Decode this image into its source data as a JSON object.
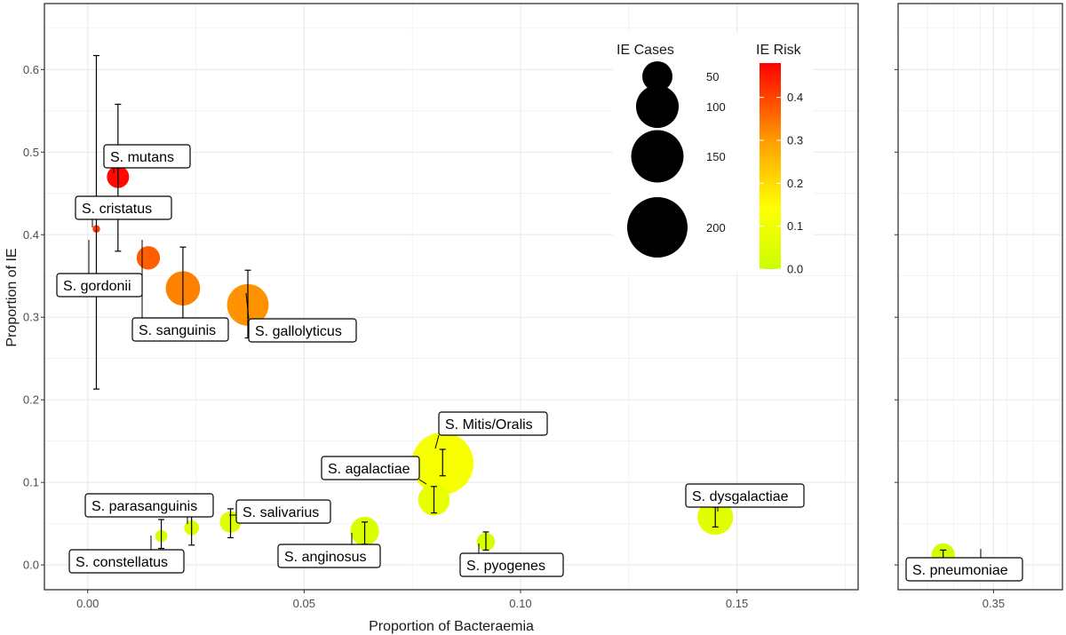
{
  "chart_data": {
    "type": "scatter",
    "xlabel": "Proportion of Bacteraemia",
    "ylabel": "Proportion of IE",
    "panels": [
      {
        "name": "main",
        "xlim": [
          -0.01,
          0.178
        ],
        "x_ticks": [
          0.0,
          0.05,
          0.1,
          0.15
        ],
        "x_tick_labels": [
          "0.00",
          "0.05",
          "0.10",
          "0.15"
        ]
      },
      {
        "name": "right",
        "xlim": [
          0.332,
          0.363
        ],
        "x_ticks": [
          0.35
        ],
        "x_tick_labels": [
          "0.35"
        ]
      }
    ],
    "ylim": [
      -0.03,
      0.68
    ],
    "y_ticks": [
      0.0,
      0.1,
      0.2,
      0.3,
      0.4,
      0.5,
      0.6
    ],
    "y_tick_labels": [
      "0.0",
      "0.1",
      "0.2",
      "0.3",
      "0.4",
      "0.5",
      "0.6"
    ],
    "points": [
      {
        "label": "S. mutans",
        "x": 0.007,
        "y": 0.47,
        "ie_cases": 27,
        "ie_risk": 0.47,
        "ci": [
          0.38,
          0.558
        ],
        "panel": 0
      },
      {
        "label": "S. cristatus",
        "x": 0.002,
        "y": 0.407,
        "ie_cases": 3,
        "ie_risk": 0.41,
        "ci": null,
        "panel": 0
      },
      {
        "label": "S. gordonii",
        "x": 0.002,
        "y": 0.407,
        "ie_cases": 3,
        "ie_risk": 0.41,
        "ci": [
          0.213,
          0.617
        ],
        "panel": 0
      },
      {
        "label": "S. sanguinis",
        "x": 0.014,
        "y": 0.372,
        "ie_cases": 30,
        "ie_risk": 0.37,
        "ci": null,
        "panel": 0
      },
      {
        "label": "S. sanguinis",
        "x": 0.022,
        "y": 0.335,
        "ie_cases": 65,
        "ie_risk": 0.33,
        "ci": [
          0.285,
          0.385
        ],
        "panel": 0
      },
      {
        "label": "S. gallolyticus",
        "x": 0.037,
        "y": 0.315,
        "ie_cases": 95,
        "ie_risk": 0.31,
        "ci": [
          0.275,
          0.357
        ],
        "panel": 0
      },
      {
        "label": "S. Mitis/Oralis",
        "x": 0.082,
        "y": 0.123,
        "ie_cases": 210,
        "ie_risk": 0.12,
        "ci": [
          0.108,
          0.14
        ],
        "panel": 0
      },
      {
        "label": "S. agalactiae",
        "x": 0.08,
        "y": 0.079,
        "ie_cases": 55,
        "ie_risk": 0.08,
        "ci": [
          0.063,
          0.095
        ],
        "panel": 0
      },
      {
        "label": "S. dysgalactiae",
        "x": 0.145,
        "y": 0.058,
        "ie_cases": 70,
        "ie_risk": 0.06,
        "ci": [
          0.046,
          0.07
        ],
        "panel": 0
      },
      {
        "label": "S. anginosus",
        "x": 0.064,
        "y": 0.041,
        "ie_cases": 45,
        "ie_risk": 0.04,
        "ci": [
          0.025,
          0.052
        ],
        "panel": 0
      },
      {
        "label": "S. salivarius",
        "x": 0.033,
        "y": 0.052,
        "ie_cases": 25,
        "ie_risk": 0.05,
        "ci": [
          0.033,
          0.068
        ],
        "panel": 0
      },
      {
        "label": "S. parasanguinis",
        "x": 0.024,
        "y": 0.045,
        "ie_cases": 12,
        "ie_risk": 0.045,
        "ci": [
          0.024,
          0.062
        ],
        "panel": 0
      },
      {
        "label": "S. constellatus",
        "x": 0.017,
        "y": 0.035,
        "ie_cases": 8,
        "ie_risk": 0.035,
        "ci": [
          0.02,
          0.055
        ],
        "panel": 0
      },
      {
        "label": "S. pyogenes",
        "x": 0.092,
        "y": 0.028,
        "ie_cases": 18,
        "ie_risk": 0.028,
        "ci": [
          0.018,
          0.04
        ],
        "panel": 0
      },
      {
        "label": "S. pneumoniae",
        "x": 0.3405,
        "y": 0.012,
        "ie_cases": 30,
        "ie_risk": 0.012,
        "ci": [
          0.006,
          0.018
        ],
        "panel": 1
      }
    ],
    "labels": [
      {
        "text": "S. mutans"
      },
      {
        "text": "S. cristatus"
      },
      {
        "text": "S. gordonii"
      },
      {
        "text": "S. sanguinis"
      },
      {
        "text": "S. gallolyticus"
      },
      {
        "text": "S. Mitis/Oralis"
      },
      {
        "text": "S. agalactiae"
      },
      {
        "text": "S. parasanguinis"
      },
      {
        "text": "S. salivarius"
      },
      {
        "text": "S. dysgalactiae"
      },
      {
        "text": "S. constellatus"
      },
      {
        "text": "S. anginosus"
      },
      {
        "text": "S. pyogenes"
      },
      {
        "text": "S. pneumoniae"
      }
    ],
    "size_legend": {
      "title": "IE Cases",
      "values": [
        50,
        100,
        150,
        200
      ],
      "labels": [
        "50",
        "100",
        "150",
        "200"
      ]
    },
    "color_legend": {
      "title": "IE Risk",
      "range": [
        0.0,
        0.48
      ],
      "ticks": [
        0.0,
        0.1,
        0.2,
        0.3,
        0.4
      ],
      "tick_labels": [
        "0.0",
        "0.1",
        "0.2",
        "0.3",
        "0.4"
      ]
    },
    "colors": {
      "low": "#ccff00",
      "mid1": "#ffff00",
      "mid2": "#ffa500",
      "high": "#ff0000",
      "grid": "#ebebeb",
      "border": "#333333"
    }
  }
}
